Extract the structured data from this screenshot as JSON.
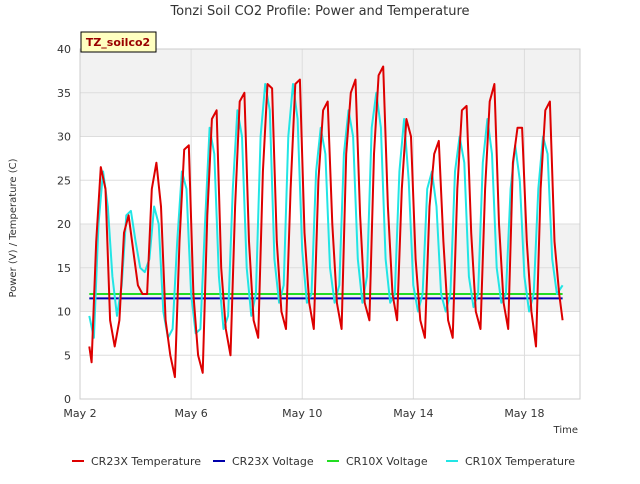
{
  "chart_data": {
    "type": "line",
    "title": "Tonzi Soil CO2 Profile: Power and Temperature",
    "xlabel": "Time",
    "ylabel": "Power (V) / Temperature (C)",
    "annotation": "TZ_soilco2",
    "xlim": [
      "2024-05-02",
      "2024-05-20"
    ],
    "ylim": [
      0,
      40
    ],
    "x_ticks": [
      {
        "date": "2024-05-02",
        "label": "May 2"
      },
      {
        "date": "2024-05-06",
        "label": "May 6"
      },
      {
        "date": "2024-05-10",
        "label": "May 10"
      },
      {
        "date": "2024-05-14",
        "label": "May 14"
      },
      {
        "date": "2024-05-18",
        "label": "May 18"
      }
    ],
    "y_ticks": [
      0,
      5,
      10,
      15,
      20,
      25,
      30,
      35,
      40
    ],
    "grid": true,
    "background_bands": true,
    "legend_position": "bottom",
    "series": [
      {
        "name": "CR23X Temperature",
        "color": "#dd0000",
        "x": [
          "2024-05-02 08:00",
          "2024-05-02 10:00",
          "2024-05-02 14:00",
          "2024-05-02 18:00",
          "2024-05-02 22:00",
          "2024-05-03 02:00",
          "2024-05-03 06:00",
          "2024-05-03 10:00",
          "2024-05-03 14:00",
          "2024-05-03 18:00",
          "2024-05-03 22:00",
          "2024-05-04 02:00",
          "2024-05-04 06:00",
          "2024-05-04 10:00",
          "2024-05-04 14:00",
          "2024-05-04 18:00",
          "2024-05-04 22:00",
          "2024-05-05 02:00",
          "2024-05-05 06:00",
          "2024-05-05 10:00",
          "2024-05-05 14:00",
          "2024-05-05 18:00",
          "2024-05-05 22:00",
          "2024-05-06 02:00",
          "2024-05-06 06:00",
          "2024-05-06 10:00",
          "2024-05-06 14:00",
          "2024-05-06 18:00",
          "2024-05-06 22:00",
          "2024-05-07 02:00",
          "2024-05-07 06:00",
          "2024-05-07 10:00",
          "2024-05-07 14:00",
          "2024-05-07 18:00",
          "2024-05-07 22:00",
          "2024-05-08 02:00",
          "2024-05-08 06:00",
          "2024-05-08 10:00",
          "2024-05-08 14:00",
          "2024-05-08 18:00",
          "2024-05-08 22:00",
          "2024-05-09 02:00",
          "2024-05-09 06:00",
          "2024-05-09 10:00",
          "2024-05-09 14:00",
          "2024-05-09 18:00",
          "2024-05-09 22:00",
          "2024-05-10 02:00",
          "2024-05-10 06:00",
          "2024-05-10 10:00",
          "2024-05-10 14:00",
          "2024-05-10 18:00",
          "2024-05-10 22:00",
          "2024-05-11 02:00",
          "2024-05-11 06:00",
          "2024-05-11 10:00",
          "2024-05-11 14:00",
          "2024-05-11 18:00",
          "2024-05-11 22:00",
          "2024-05-12 02:00",
          "2024-05-12 06:00",
          "2024-05-12 10:00",
          "2024-05-12 14:00",
          "2024-05-12 18:00",
          "2024-05-12 22:00",
          "2024-05-13 02:00",
          "2024-05-13 06:00",
          "2024-05-13 10:00",
          "2024-05-13 14:00",
          "2024-05-13 18:00",
          "2024-05-13 22:00",
          "2024-05-14 02:00",
          "2024-05-14 06:00",
          "2024-05-14 10:00",
          "2024-05-14 14:00",
          "2024-05-14 18:00",
          "2024-05-14 22:00",
          "2024-05-15 02:00",
          "2024-05-15 06:00",
          "2024-05-15 10:00",
          "2024-05-15 14:00",
          "2024-05-15 18:00",
          "2024-05-15 22:00",
          "2024-05-16 02:00",
          "2024-05-16 06:00",
          "2024-05-16 10:00",
          "2024-05-16 14:00",
          "2024-05-16 18:00",
          "2024-05-16 22:00",
          "2024-05-17 02:00",
          "2024-05-17 06:00",
          "2024-05-17 10:00",
          "2024-05-17 14:00",
          "2024-05-17 18:00",
          "2024-05-17 22:00",
          "2024-05-18 02:00",
          "2024-05-18 06:00",
          "2024-05-18 10:00",
          "2024-05-18 14:00",
          "2024-05-18 18:00",
          "2024-05-18 22:00",
          "2024-05-19 02:00",
          "2024-05-19 06:00",
          "2024-05-19 09:00"
        ],
        "y": [
          6.0,
          4.2,
          18.0,
          26.5,
          24.0,
          9.0,
          6.0,
          9.0,
          19.0,
          21.0,
          17.0,
          13.0,
          12.0,
          12.0,
          24.0,
          27.0,
          22.0,
          9.0,
          5.0,
          2.5,
          18.0,
          28.5,
          29.0,
          12.0,
          5.0,
          3.0,
          21.0,
          32.0,
          33.0,
          15.0,
          8.0,
          5.0,
          22.0,
          34.0,
          35.0,
          18.0,
          9.0,
          7.0,
          26.0,
          36.0,
          35.5,
          18.0,
          10.0,
          8.0,
          24.0,
          36.0,
          36.5,
          19.0,
          11.0,
          8.0,
          25.0,
          33.0,
          34.0,
          20.0,
          11.0,
          8.0,
          28.0,
          35.0,
          36.5,
          21.0,
          11.0,
          9.0,
          28.0,
          37.0,
          38.0,
          22.0,
          12.0,
          9.0,
          24.0,
          32.0,
          30.0,
          16.0,
          9.0,
          7.0,
          22.0,
          28.0,
          29.5,
          18.0,
          9.0,
          7.0,
          24.0,
          33.0,
          33.5,
          19.0,
          10.0,
          8.0,
          24.0,
          34.0,
          36.0,
          20.0,
          11.0,
          8.0,
          27.0,
          31.0,
          31.0,
          18.0,
          10.0,
          6.0,
          24.0,
          33.0,
          34.0,
          18.0,
          12.0,
          9.0
        ]
      },
      {
        "name": "CR23X Voltage",
        "color": "#0000aa",
        "x": [
          "2024-05-02 08:00",
          "2024-05-19 09:00"
        ],
        "y": [
          11.5,
          11.5
        ]
      },
      {
        "name": "CR10X Voltage",
        "color": "#22dd22",
        "x": [
          "2024-05-02 08:00",
          "2024-05-19 09:00"
        ],
        "y": [
          12.0,
          12.0
        ]
      },
      {
        "name": "CR10X Temperature",
        "color": "#22e5e5",
        "x": [
          "2024-05-02 08:00",
          "2024-05-02 12:00",
          "2024-05-02 16:00",
          "2024-05-02 20:00",
          "2024-05-03 00:00",
          "2024-05-03 04:00",
          "2024-05-03 08:00",
          "2024-05-03 12:00",
          "2024-05-03 16:00",
          "2024-05-03 20:00",
          "2024-05-04 00:00",
          "2024-05-04 04:00",
          "2024-05-04 08:00",
          "2024-05-04 12:00",
          "2024-05-04 16:00",
          "2024-05-04 20:00",
          "2024-05-05 00:00",
          "2024-05-05 04:00",
          "2024-05-05 08:00",
          "2024-05-05 12:00",
          "2024-05-05 16:00",
          "2024-05-05 20:00",
          "2024-05-06 00:00",
          "2024-05-06 04:00",
          "2024-05-06 08:00",
          "2024-05-06 12:00",
          "2024-05-06 16:00",
          "2024-05-06 20:00",
          "2024-05-07 00:00",
          "2024-05-07 04:00",
          "2024-05-07 08:00",
          "2024-05-07 12:00",
          "2024-05-07 16:00",
          "2024-05-07 20:00",
          "2024-05-08 00:00",
          "2024-05-08 04:00",
          "2024-05-08 08:00",
          "2024-05-08 12:00",
          "2024-05-08 16:00",
          "2024-05-08 20:00",
          "2024-05-09 00:00",
          "2024-05-09 04:00",
          "2024-05-09 08:00",
          "2024-05-09 12:00",
          "2024-05-09 16:00",
          "2024-05-09 20:00",
          "2024-05-10 00:00",
          "2024-05-10 04:00",
          "2024-05-10 08:00",
          "2024-05-10 12:00",
          "2024-05-10 16:00",
          "2024-05-10 20:00",
          "2024-05-11 00:00",
          "2024-05-11 04:00",
          "2024-05-11 08:00",
          "2024-05-11 12:00",
          "2024-05-11 16:00",
          "2024-05-11 20:00",
          "2024-05-12 00:00",
          "2024-05-12 04:00",
          "2024-05-12 08:00",
          "2024-05-12 12:00",
          "2024-05-12 16:00",
          "2024-05-12 20:00",
          "2024-05-13 00:00",
          "2024-05-13 04:00",
          "2024-05-13 08:00",
          "2024-05-13 12:00",
          "2024-05-13 16:00",
          "2024-05-13 20:00",
          "2024-05-14 00:00",
          "2024-05-14 04:00",
          "2024-05-14 08:00",
          "2024-05-14 12:00",
          "2024-05-14 16:00",
          "2024-05-14 20:00",
          "2024-05-15 00:00",
          "2024-05-15 04:00",
          "2024-05-15 08:00",
          "2024-05-15 12:00",
          "2024-05-15 16:00",
          "2024-05-15 20:00",
          "2024-05-16 00:00",
          "2024-05-16 04:00",
          "2024-05-16 08:00",
          "2024-05-16 12:00",
          "2024-05-16 16:00",
          "2024-05-16 20:00",
          "2024-05-17 00:00",
          "2024-05-17 04:00",
          "2024-05-17 08:00",
          "2024-05-17 12:00",
          "2024-05-17 16:00",
          "2024-05-17 20:00",
          "2024-05-18 00:00",
          "2024-05-18 04:00",
          "2024-05-18 08:00",
          "2024-05-18 12:00",
          "2024-05-18 16:00",
          "2024-05-18 20:00",
          "2024-05-19 00:00",
          "2024-05-19 04:00",
          "2024-05-19 09:00"
        ],
        "y": [
          9.5,
          7.0,
          20.0,
          26.0,
          22.0,
          14.0,
          9.5,
          13.0,
          21.0,
          21.5,
          18.0,
          15.0,
          14.5,
          16.0,
          22.0,
          20.0,
          10.0,
          7.0,
          8.0,
          18.0,
          26.0,
          24.0,
          12.0,
          7.5,
          8.0,
          20.0,
          31.0,
          28.0,
          14.0,
          8.0,
          9.5,
          24.0,
          33.0,
          30.0,
          15.0,
          9.5,
          12.0,
          30.0,
          36.0,
          33.0,
          16.0,
          11.0,
          13.0,
          30.0,
          36.0,
          32.0,
          17.0,
          11.0,
          12.0,
          26.0,
          31.0,
          28.0,
          15.0,
          11.0,
          13.0,
          28.0,
          33.0,
          30.0,
          16.0,
          11.0,
          14.0,
          31.0,
          35.0,
          31.0,
          16.0,
          11.0,
          12.0,
          26.0,
          32.0,
          25.0,
          13.0,
          10.0,
          12.0,
          24.0,
          26.0,
          22.0,
          12.0,
          10.0,
          12.0,
          26.0,
          30.0,
          27.0,
          14.0,
          10.5,
          12.0,
          27.0,
          32.0,
          28.0,
          15.0,
          11.0,
          12.0,
          24.0,
          29.0,
          25.0,
          14.0,
          10.0,
          12.0,
          24.0,
          30.0,
          28.0,
          16.0,
          12.0,
          13.0
        ]
      }
    ]
  }
}
